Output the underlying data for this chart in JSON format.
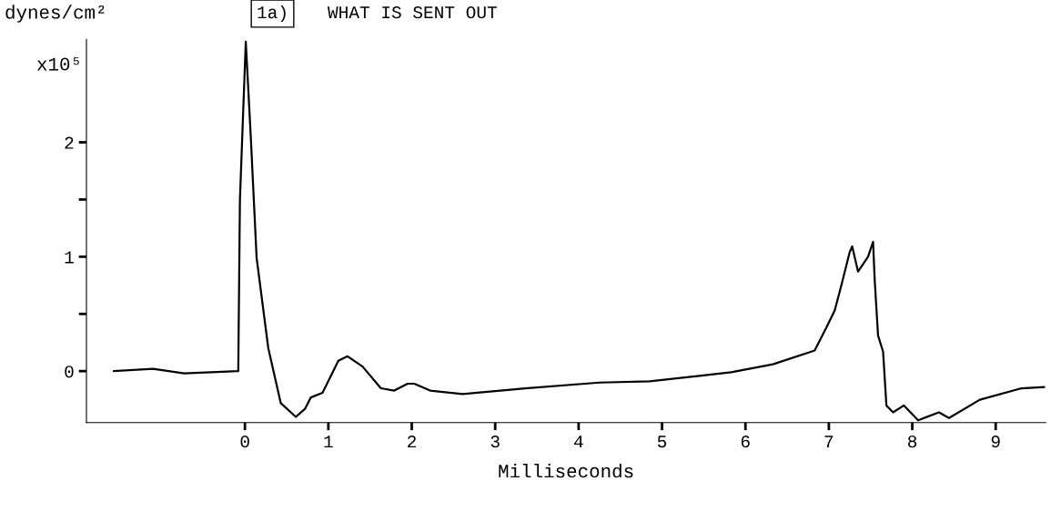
{
  "chart_data": {
    "type": "line",
    "title": "1a)",
    "subtitle": "WHAT IS SENT OUT",
    "xlabel": "Milliseconds",
    "annotations": [
      "dynes/cm²",
      "x10⁵"
    ],
    "xlim": [
      -1.9,
      9.6
    ],
    "ylim": [
      -0.45,
      2.9
    ],
    "x": [
      -1.57,
      -1.1,
      -0.73,
      -0.08,
      -0.06,
      0.01,
      0.07,
      0.14,
      0.28,
      0.43,
      0.61,
      0.72,
      0.79,
      0.93,
      1.12,
      1.23,
      1.41,
      1.63,
      1.79,
      1.95,
      2.03,
      2.22,
      2.61,
      3.36,
      4.25,
      4.85,
      5.83,
      6.33,
      6.83,
      6.97,
      7.07,
      7.15,
      7.25,
      7.28,
      7.35,
      7.47,
      7.53,
      7.55,
      7.59,
      7.65,
      7.69,
      7.77,
      7.9,
      8.07,
      8.32,
      8.44,
      8.81,
      9.31,
      9.58
    ],
    "series": [
      {
        "color": "#000000",
        "values": [
          0.0,
          0.02,
          -0.02,
          0.0,
          1.5,
          2.88,
          2.05,
          0.99,
          0.2,
          -0.28,
          -0.4,
          -0.33,
          -0.23,
          -0.19,
          0.09,
          0.13,
          0.04,
          -0.15,
          -0.17,
          -0.11,
          -0.11,
          -0.17,
          -0.2,
          -0.15,
          -0.1,
          -0.09,
          -0.01,
          0.06,
          0.18,
          0.38,
          0.53,
          0.75,
          1.04,
          1.09,
          0.87,
          1.0,
          1.13,
          0.79,
          0.31,
          0.17,
          -0.3,
          -0.36,
          -0.3,
          -0.43,
          -0.36,
          -0.41,
          -0.25,
          -0.15,
          -0.14
        ]
      }
    ],
    "xticks": [
      0,
      1,
      2,
      3,
      4,
      5,
      6,
      7,
      8,
      9
    ],
    "yticks": [
      0,
      {
        "value": 0.5,
        "label": null
      },
      1,
      {
        "value": 1.5,
        "label": null
      },
      2
    ],
    "grid": false,
    "legend": false,
    "marker": "none",
    "line_style": "solid"
  }
}
